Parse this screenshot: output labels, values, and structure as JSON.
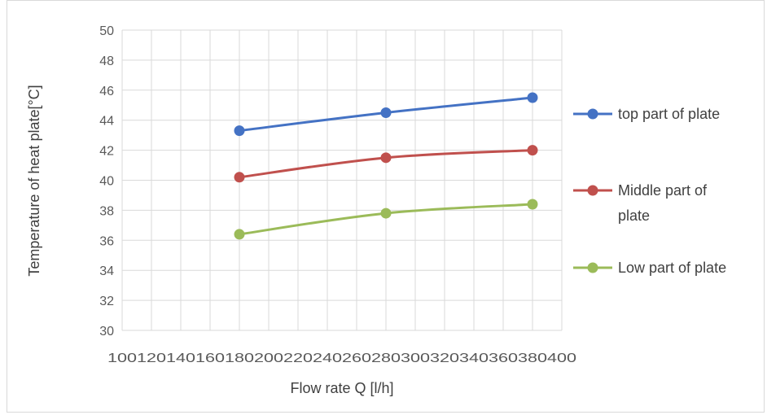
{
  "chart_data": {
    "type": "line",
    "title": "",
    "xlabel": "Flow rate Q [l/h]",
    "ylabel": "Temperature of heat plate[°C]",
    "xlim": [
      100,
      400
    ],
    "ylim": [
      30,
      50
    ],
    "x_ticks": [
      "100",
      "120",
      "140",
      "160",
      "180",
      "200",
      "220",
      "240",
      "260",
      "280",
      "300",
      "320",
      "340",
      "360",
      "380",
      "400"
    ],
    "y_ticks": [
      "30",
      "32",
      "34",
      "36",
      "38",
      "40",
      "42",
      "44",
      "46",
      "48",
      "50"
    ],
    "grid": true,
    "legend_position": "right",
    "series": [
      {
        "name": "top part of plate",
        "color": "#4472C4",
        "x": [
          180,
          280,
          380
        ],
        "y": [
          43.3,
          44.5,
          45.5
        ]
      },
      {
        "name": "Middle part of plate",
        "legend_lines": [
          "Middle part of",
          "plate"
        ],
        "color": "#C0504D",
        "x": [
          180,
          280,
          380
        ],
        "y": [
          40.2,
          41.5,
          42.0
        ]
      },
      {
        "name": "Low part of plate",
        "color": "#9BBB59",
        "x": [
          180,
          280,
          380
        ],
        "y": [
          36.4,
          37.8,
          38.4
        ]
      }
    ]
  }
}
